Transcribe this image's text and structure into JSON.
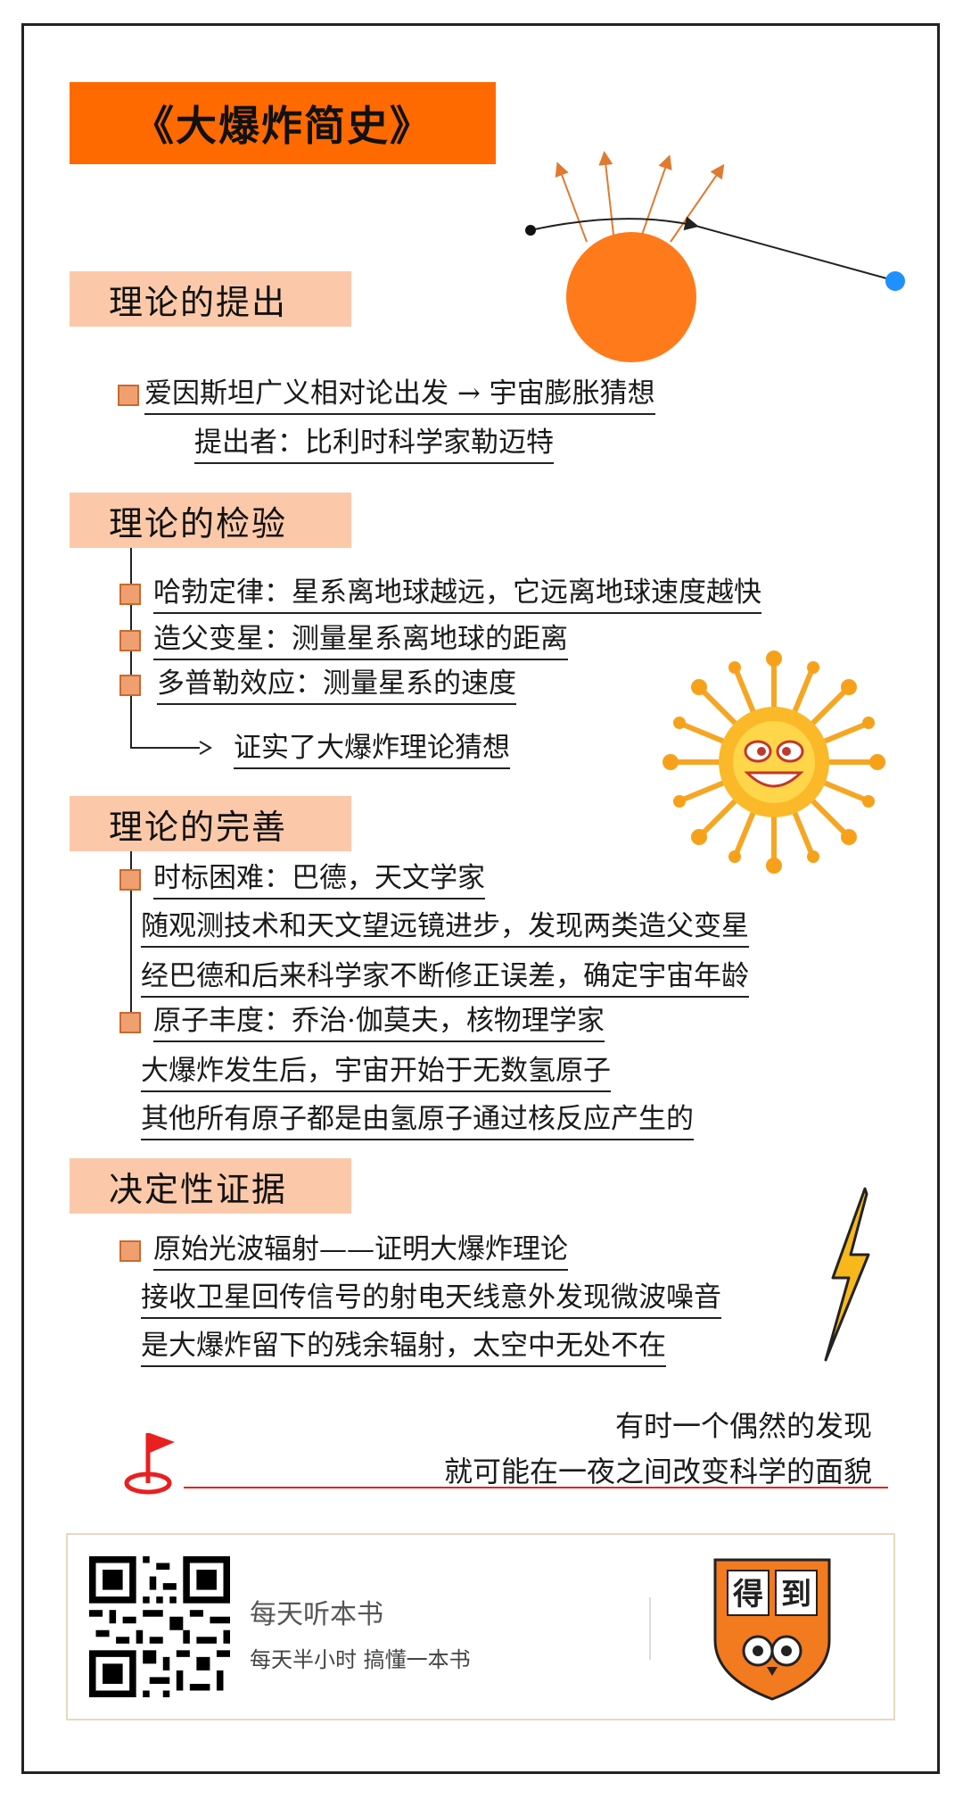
{
  "title": "《大爆炸简史》",
  "sections": {
    "proposal": {
      "heading": "理论的提出",
      "line1": "爱因斯坦广义相对论出发 → 宇宙膨胀猜想",
      "line2": "提出者：比利时科学家勒迈特"
    },
    "verification": {
      "heading": "理论的检验",
      "item1": "哈勃定律：星系离地球越远，它远离地球速度越快",
      "item2": "造父变星：测量星系离地球的距离",
      "item3": "多普勒效应：测量星系的速度",
      "conclusion": "证实了大爆炸理论猜想"
    },
    "refinement": {
      "heading": "理论的完善",
      "item1": "时标困难：巴德，天文学家",
      "item1_line2": "随观测技术和天文望远镜进步，发现两类造父变星",
      "item1_line3": "经巴德和后来科学家不断修正误差，确定宇宙年龄",
      "item2": "原子丰度：乔治·伽莫夫，核物理学家",
      "item2_line2": "大爆炸发生后，宇宙开始于无数氢原子",
      "item2_line3": "其他所有原子都是由氢原子通过核反应产生的"
    },
    "evidence": {
      "heading": "决定性证据",
      "item1": "原始光波辐射——证明大爆炸理论",
      "line2": "接收卫星回传信号的射电天线意外发现微波噪音",
      "line3": "是大爆炸留下的残余辐射，太空中无处不在"
    }
  },
  "closing": {
    "line1": "有时一个偶然的发现",
    "line2": "就可能在一夜之间改变科学的面貌"
  },
  "footer": {
    "app_name": "每天听本书",
    "slogan": "每天半小时 搞懂一本书",
    "logo_text_1": "得",
    "logo_text_2": "到"
  },
  "colors": {
    "banner": "#ff6a00",
    "section_bg": "#fbc9a9",
    "bullet": "#f0a070",
    "sun": "#ff7a1a",
    "accent_blue": "#1e90ff",
    "flag_red": "#e82020",
    "logo_orange": "#f27a1f"
  },
  "icons": [
    "sun-orbit-diagram",
    "smiling-sun-illustration",
    "lightning-bolt-icon",
    "flag-icon",
    "qr-code",
    "dedao-logo"
  ]
}
